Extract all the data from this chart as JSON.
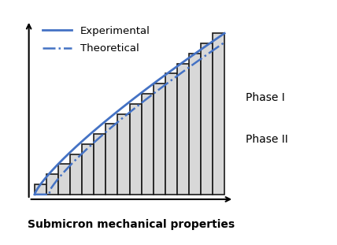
{
  "title": "",
  "xlabel": "Submicron mechanical properties",
  "n_bars": 16,
  "bar_color": "#d8d8d8",
  "bar_edge_color": "#1a1a1a",
  "bar_linewidth": 1.2,
  "solid_line_color": "#4472c4",
  "dashdot_line_color": "#4472c4",
  "solid_linewidth": 2.0,
  "dashdot_linewidth": 1.8,
  "legend_experimental": "Experimental",
  "legend_theoretical": "Theoretical",
  "phase1_label": "Phase I",
  "phase2_label": "Phase II",
  "background_color": "#ffffff",
  "xlabel_fontsize": 10,
  "xlabel_fontweight": "bold",
  "legend_fontsize": 9.5,
  "annotation_fontsize": 10
}
